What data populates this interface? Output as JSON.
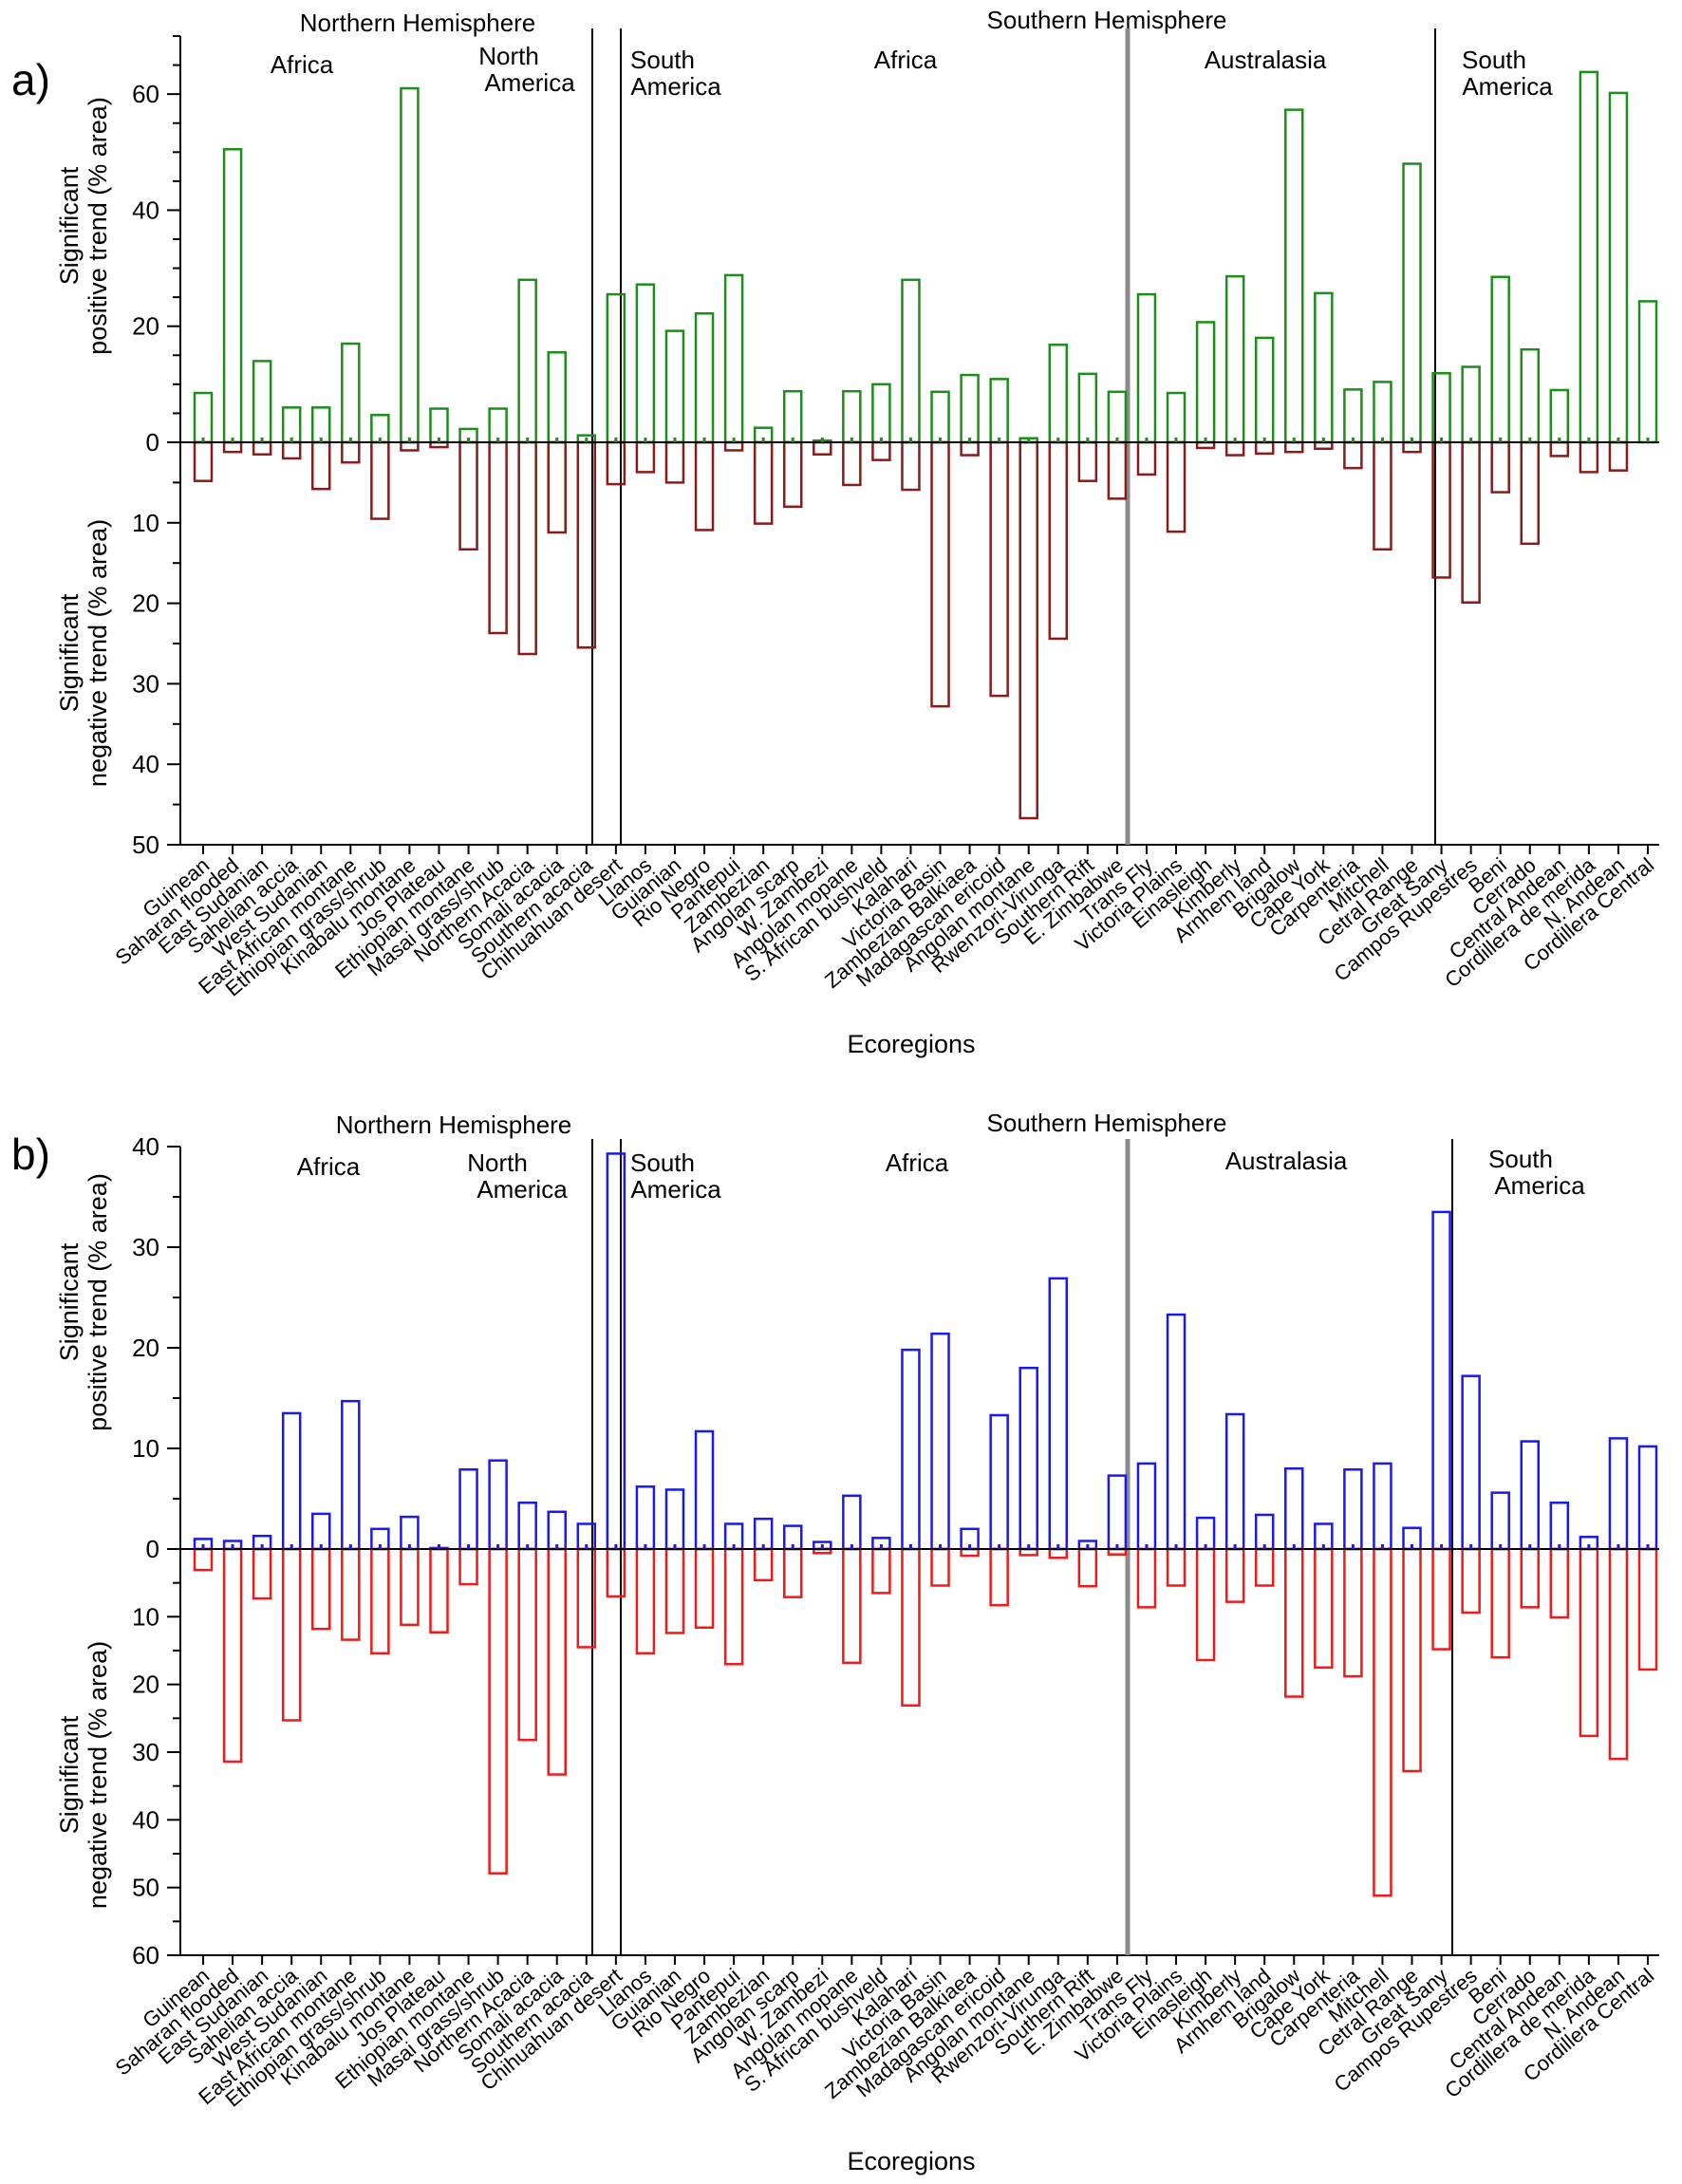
{
  "ecoregions": [
    "Guinean",
    "Saharan flooded",
    "East Sudanian",
    "Sahelian accia",
    "West Sudanian",
    "East African montane",
    "Ethiopian grass/shrub",
    "Kinabalu montane",
    "Jos Plateau",
    "Ethiopian montane",
    "Masai grass/shrub",
    "Northern Acacia",
    "Somali acacia",
    "Southern acacia",
    "Chihuahuan desert",
    "Llanos",
    "Guianian",
    "Rio Negro",
    "Pantepui",
    "Zambezian",
    "Angolan scarp",
    "W. Zambezi",
    "Angolan mopane",
    "S. African bushveld",
    "Kalahari",
    "Victoria Basin",
    "Zambezian Balkiaea",
    "Madagascan ericoid",
    "Angolan montane",
    "Rwenzori-Virunga",
    "Southern Rift",
    "E. Zimbabwe",
    "Trans Fly",
    "Victoria Plains",
    "Einasleigh",
    "Kimberly",
    "Arnhem land",
    "Brigalow",
    "Cape York",
    "Carpenteria",
    "Mitchell",
    "Cetral Range",
    "Great Sany",
    "Campos Rupestres",
    "Beni",
    "Cerrado",
    "Central Andean",
    "Cordillera de merida",
    "N. Andean",
    "Cordillera Central"
  ],
  "chart_data": [
    {
      "type": "bar",
      "panel_label": "a)",
      "xlabel": "Ecoregions",
      "ylabel_positive": [
        "Significant",
        "positive trend (% area)"
      ],
      "ylabel_negative": [
        "Significant",
        "negative trend (% area)"
      ],
      "positive_ylim": [
        0,
        70
      ],
      "positive_ticks": [
        "0",
        "20",
        "40",
        "60"
      ],
      "negative_ylim": [
        0,
        50
      ],
      "negative_ticks": [
        "10",
        "20",
        "30",
        "40",
        "50"
      ],
      "positive_color": "#1a8f1a",
      "negative_color": "#8b1a1a",
      "hemispheres": [
        "Northern Hemisphere",
        "Southern Hemisphere"
      ],
      "regions": [
        {
          "lines": [
            "Africa"
          ]
        },
        {
          "lines": [
            "North",
            "America"
          ]
        },
        {
          "lines": [
            "South",
            "America"
          ]
        },
        {
          "lines": [
            "Africa"
          ]
        },
        {
          "lines": [
            "Australasia"
          ]
        },
        {
          "lines": [
            "South",
            "America"
          ]
        }
      ],
      "positive_values": [
        8.5,
        50.5,
        14,
        6,
        6,
        17,
        4.7,
        61,
        5.8,
        2.3,
        5.8,
        28,
        15.5,
        1.2,
        25.5,
        27.2,
        19.2,
        22.2,
        28.8,
        2.5,
        8.8,
        0.3,
        8.8,
        10,
        28,
        8.7,
        11.6,
        10.9,
        0.7,
        16.8,
        11.8,
        8.7,
        25.5,
        8.5,
        20.7,
        28.6,
        18,
        57.3,
        25.7,
        9.1,
        10.4,
        48,
        11.9,
        13,
        28.5,
        16,
        9,
        63.8,
        60.2,
        24.3
      ],
      "negative_values": [
        4.8,
        1.2,
        1.5,
        2,
        5.8,
        2.5,
        9.5,
        1,
        0.6,
        13.3,
        23.7,
        26.3,
        11.2,
        25.5,
        5.2,
        3.7,
        5,
        10.9,
        1,
        10.1,
        8,
        1.5,
        5.3,
        2.2,
        5.9,
        32.8,
        1.6,
        31.5,
        46.7,
        24.4,
        4.8,
        7,
        4,
        11.1,
        0.7,
        1.6,
        1.4,
        1.2,
        0.8,
        3.2,
        13.3,
        1.2,
        16.8,
        19.9,
        6.2,
        12.6,
        1.7,
        3.7,
        3.5,
        0
      ]
    },
    {
      "type": "bar",
      "panel_label": "b)",
      "xlabel": "Ecoregions",
      "ylabel_positive": [
        "Significant",
        "positive trend (% area)"
      ],
      "ylabel_negative": [
        "Significant",
        "negative trend (% area)"
      ],
      "positive_ylim": [
        0,
        40
      ],
      "positive_ticks": [
        "0",
        "10",
        "20",
        "30",
        "40"
      ],
      "negative_ylim": [
        0,
        60
      ],
      "negative_ticks": [
        "10",
        "20",
        "30",
        "40",
        "50",
        "60"
      ],
      "positive_color": "#1a1af0",
      "negative_color": "#f01a1a",
      "hemispheres": [
        "Northern Hemisphere",
        "Southern Hemisphere"
      ],
      "regions": [
        {
          "lines": [
            "Africa"
          ]
        },
        {
          "lines": [
            "North",
            "America"
          ]
        },
        {
          "lines": [
            "South",
            "America"
          ]
        },
        {
          "lines": [
            "Africa"
          ]
        },
        {
          "lines": [
            "Australasia"
          ]
        },
        {
          "lines": [
            "South",
            "America"
          ]
        }
      ],
      "positive_values": [
        1,
        0.8,
        1.3,
        13.5,
        3.5,
        14.7,
        2,
        3.2,
        0.1,
        7.9,
        8.8,
        4.6,
        3.7,
        2.5,
        39.3,
        6.2,
        5.9,
        11.7,
        2.5,
        3,
        2.3,
        0.7,
        5.3,
        1.1,
        19.8,
        21.4,
        2,
        13.3,
        18,
        26.9,
        0.8,
        7.3,
        8.5,
        23.3,
        3.1,
        13.4,
        3.4,
        8,
        2.5,
        7.9,
        8.5,
        2.1,
        33.5,
        17.2,
        5.6,
        10.7,
        4.6,
        1.2,
        11,
        10.2
      ],
      "negative_values": [
        3.1,
        31.4,
        7.3,
        25.3,
        11.8,
        13.4,
        15.4,
        11.2,
        12.3,
        5.2,
        47.9,
        28.2,
        33.3,
        14.5,
        7,
        15.4,
        12.4,
        11.6,
        17,
        4.6,
        7.1,
        0.6,
        16.8,
        6.5,
        23.1,
        5.4,
        1,
        8.3,
        0.9,
        1.3,
        5.5,
        0.8,
        8.6,
        5.4,
        16.4,
        7.8,
        5.4,
        21.8,
        17.5,
        18.8,
        51.2,
        32.8,
        14.8,
        9.4,
        16,
        8.6,
        10.1,
        27.6,
        31,
        17.8
      ]
    }
  ]
}
